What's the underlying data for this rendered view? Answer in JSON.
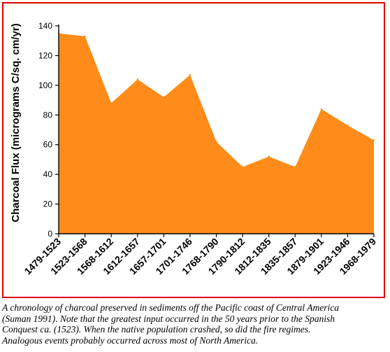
{
  "chart_data": {
    "type": "area",
    "title": "",
    "xlabel": "",
    "ylabel": "Charcoal Flux (micrograms C/sq. cm/yr)",
    "ylim": [
      0,
      140
    ],
    "yticks": [
      "0",
      "20",
      "40",
      "60",
      "80",
      "100",
      "120",
      "140"
    ],
    "grid": false,
    "legend": "none",
    "fill_color": "#ff8c1a",
    "border_color": "#e00000",
    "categories": [
      "1479-1523",
      "1523-1568",
      "1568-1612",
      "1612-1657",
      "1657-1701",
      "1701-1746",
      "1768-1790",
      "1790-1812",
      "1812-1835",
      "1835-1857",
      "1879-1901",
      "1923-1946",
      "1968-1979"
    ],
    "values": [
      135,
      133,
      88,
      104,
      92,
      107,
      62,
      45,
      52,
      45,
      84,
      73,
      63
    ]
  },
  "caption": {
    "lines": [
      "A chronology of charcoal preserved in sediments off the Pacific coast of Central America",
      "(Suman 1991). Note that the greatest input occurred in the 50 years prior to the Spanish",
      "Conquest ca. (1523). When the native population crashed, so did the fire regimes.",
      "Analogous events probably occurred across most of North America."
    ]
  }
}
